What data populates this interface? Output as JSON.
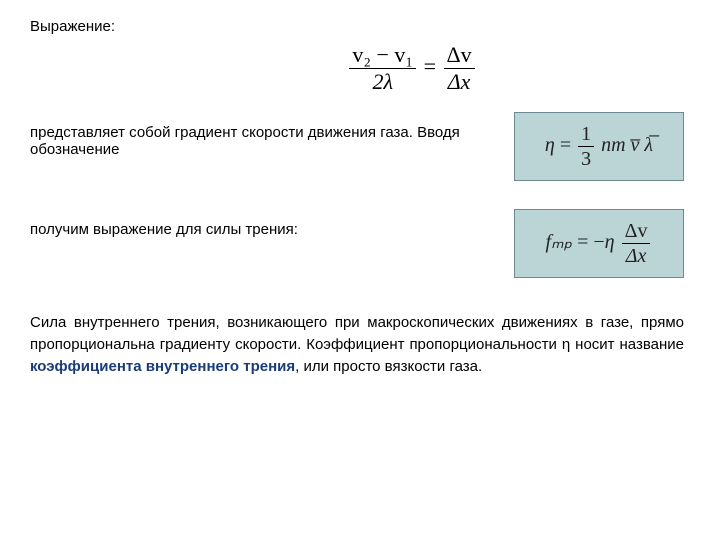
{
  "heading": "Выражение:",
  "topEquation": {
    "left_num": "v₂ − v₁",
    "left_den": "2λ",
    "right_num": "Δv",
    "right_den": "Δx"
  },
  "row1": {
    "text": "представляет собой градиент скорости движения газа. Вводя обозначение",
    "formula": {
      "lhs": "η",
      "frac_num": "1",
      "frac_den": "3",
      "rest": "nm v̅ λ̅"
    },
    "box_bg": "#bbd4d6",
    "box_border": "#6d8b92"
  },
  "row2": {
    "text": "получим выражение для силы трения:",
    "formula": {
      "lhs": "fₘₚ",
      "frac_num": "Δv",
      "frac_den": "Δx"
    },
    "box_bg": "#bbd4d6",
    "box_border": "#6d8b92"
  },
  "paragraph": {
    "p1": "Сила внутреннего трения, возникающего при макроскопических движениях в газе, прямо пропорциональна градиенту скорости. Коэффициент пропорциональности η носит название ",
    "bold": "коэффициента внутреннего трения",
    "p2": ", или просто вязкости газа."
  },
  "colors": {
    "text": "#000000",
    "highlight": "#1a3d7a",
    "background": "#ffffff"
  },
  "fontsize_body": 15,
  "fontsize_formula": 20
}
